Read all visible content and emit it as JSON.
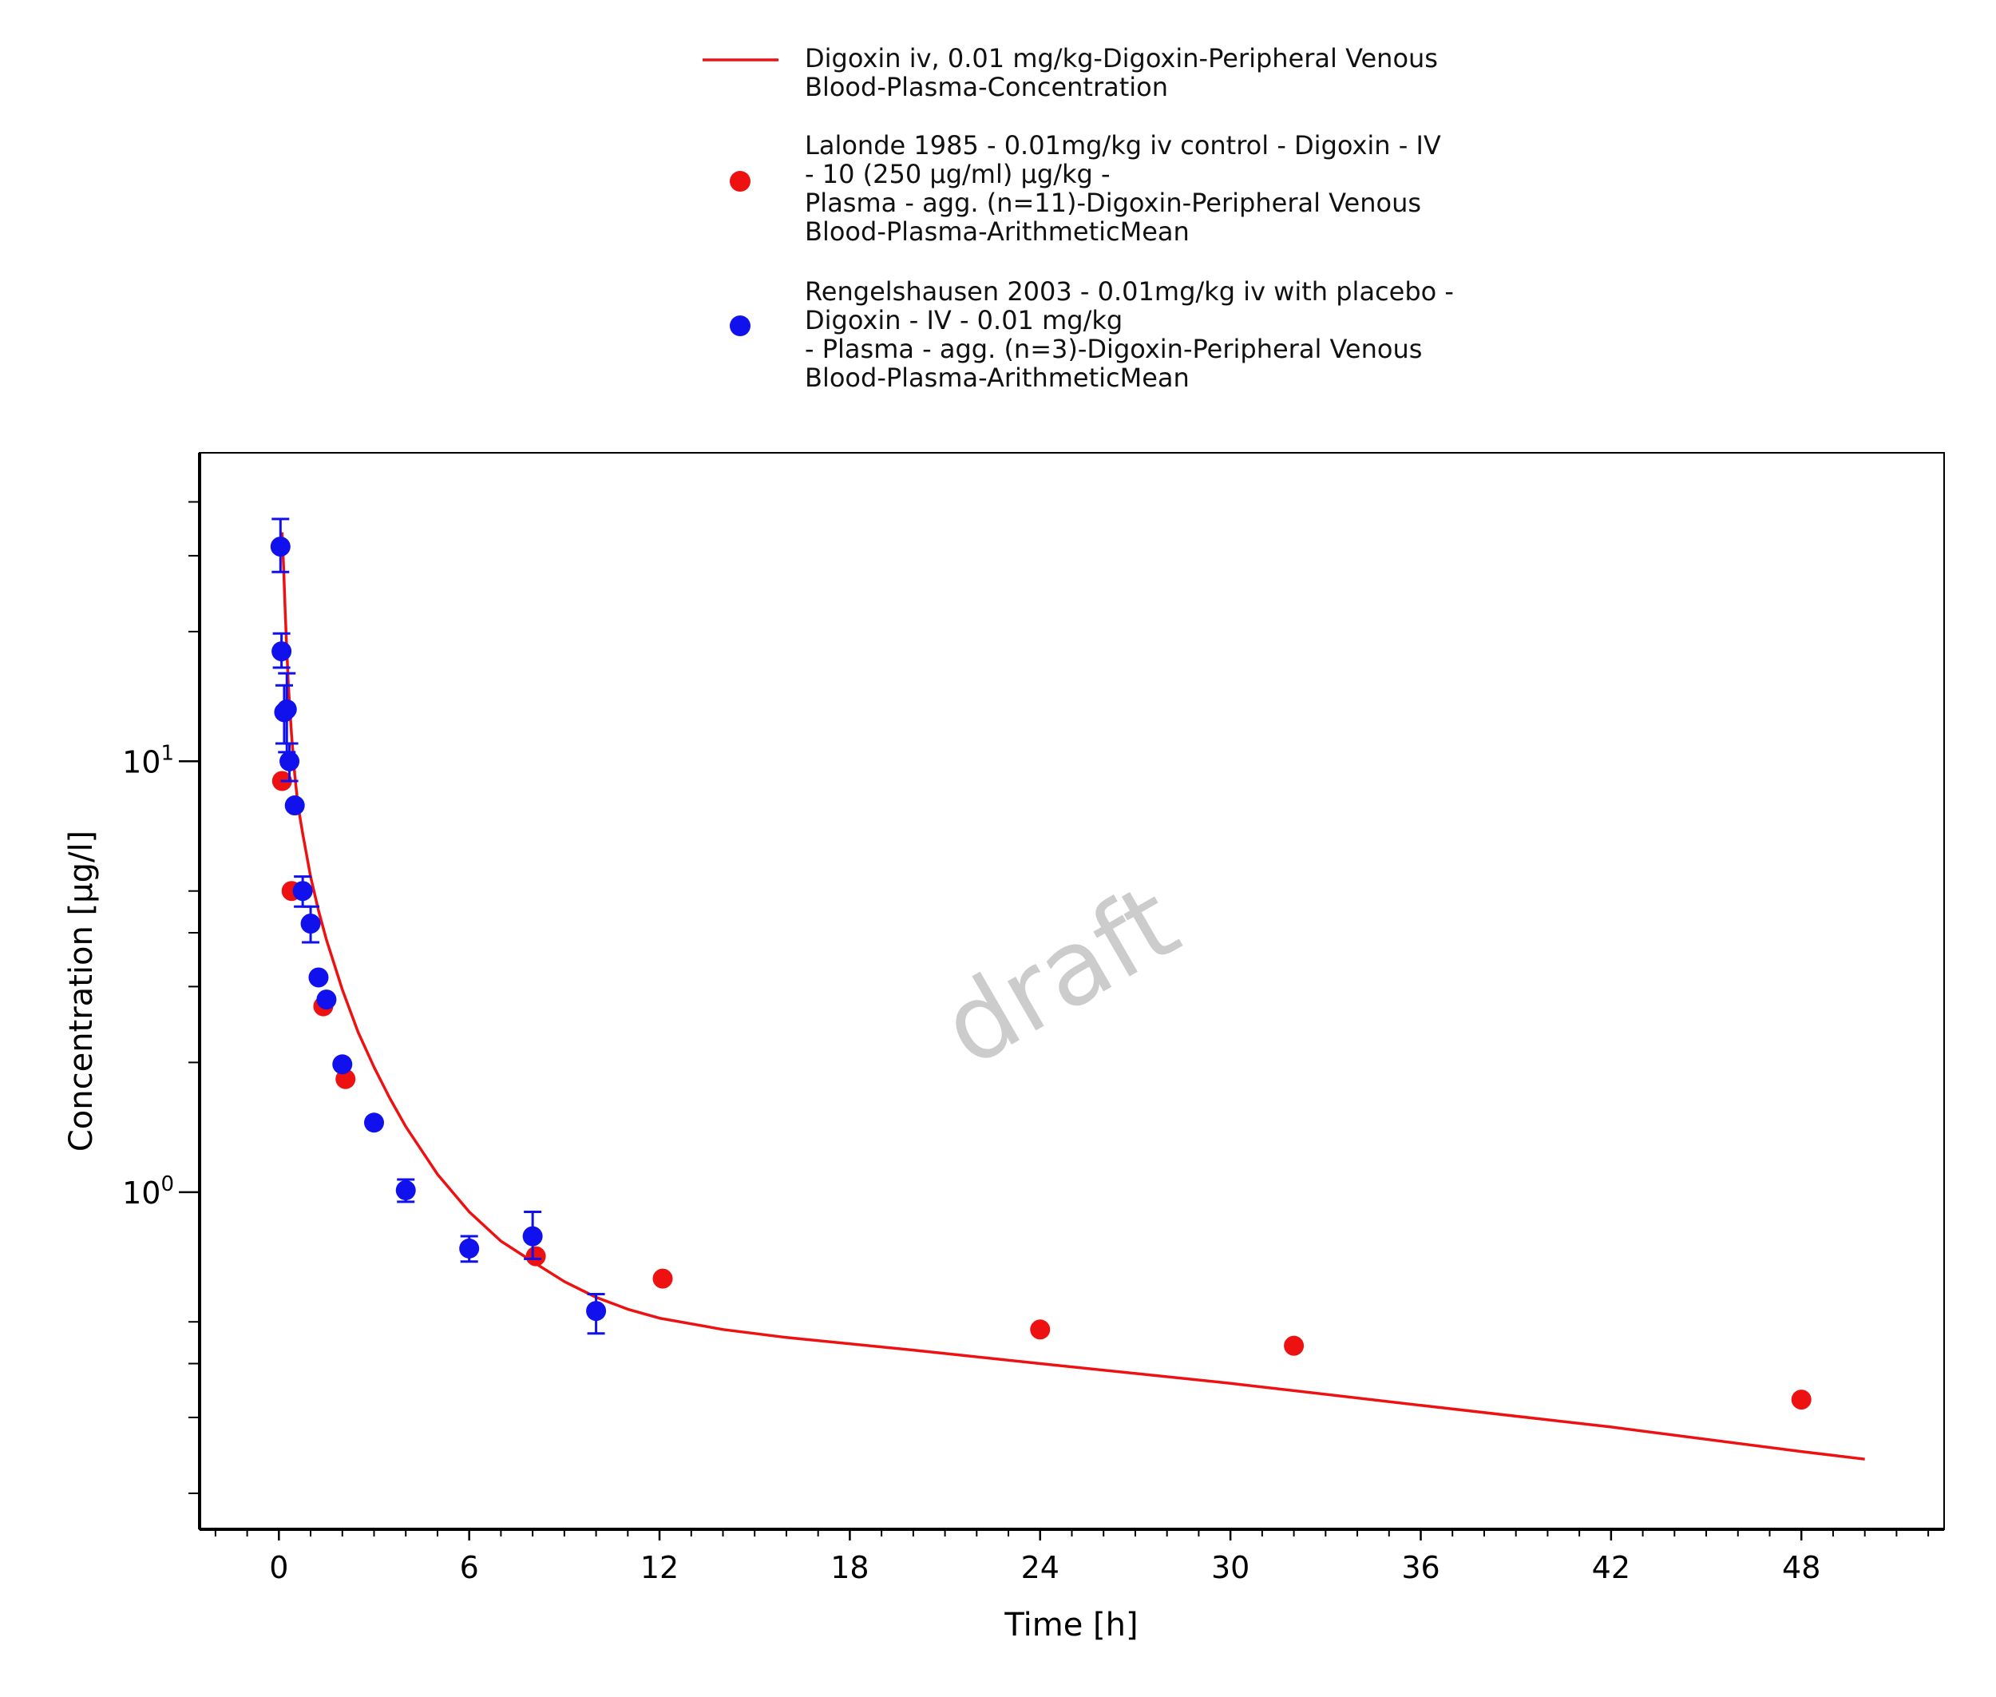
{
  "chart_data": {
    "type": "line+scatter",
    "x_axis": {
      "label": "Time [h]",
      "range": [
        -2.5,
        52.5
      ],
      "ticks": [
        0,
        6,
        12,
        18,
        24,
        30,
        36,
        42,
        48
      ],
      "tick_labels": [
        "0",
        "6",
        "12",
        "18",
        "24",
        "30",
        "36",
        "42",
        "48"
      ]
    },
    "y_axis": {
      "label": "Concentration [µg/l]",
      "scale": "log",
      "range": [
        0.165,
        52
      ],
      "major_ticks": [
        1,
        10
      ],
      "tick_labels": [
        {
          "base": "10",
          "exponent": "0",
          "value": 1
        },
        {
          "base": "10",
          "exponent": "1",
          "value": 10
        }
      ],
      "minor_ticks": [
        0.2,
        0.3,
        0.4,
        0.5,
        2,
        3,
        4,
        5,
        20,
        30,
        40
      ]
    },
    "legend_position": "top-center",
    "watermark": "draft",
    "series": [
      {
        "name": "Digoxin iv, 0.01 mg/kg-Digoxin-Peripheral Venous Blood-Plasma-Concentration",
        "legend_lines": [
          "Digoxin iv, 0.01 mg/kg-Digoxin-Peripheral Venous",
          "Blood-Plasma-Concentration"
        ],
        "kind": "line",
        "color": "#ee1111",
        "x": [
          0.1,
          0.15,
          0.2,
          0.25,
          0.3,
          0.4,
          0.5,
          0.6,
          0.75,
          1.0,
          1.25,
          1.5,
          2,
          2.5,
          3,
          3.5,
          4,
          5,
          6,
          7,
          8,
          9,
          10,
          11,
          12,
          14,
          16,
          20,
          24,
          30,
          36,
          42,
          48,
          50
        ],
        "y": [
          34,
          28,
          22,
          18,
          15,
          11.5,
          9.3,
          7.9,
          6.8,
          5.4,
          4.5,
          3.85,
          2.95,
          2.35,
          1.95,
          1.65,
          1.42,
          1.1,
          0.9,
          0.77,
          0.69,
          0.62,
          0.57,
          0.535,
          0.51,
          0.48,
          0.46,
          0.43,
          0.4,
          0.36,
          0.32,
          0.285,
          0.25,
          0.24
        ]
      },
      {
        "name": "Lalonde 1985 - 0.01mg/kg iv control - Digoxin - IV - 10 (250 µg/ml) µg/kg - Plasma - agg. (n=11)-Digoxin-Peripheral Venous Blood-Plasma-ArithmeticMean",
        "legend_lines": [
          "Lalonde 1985 - 0.01mg/kg iv control - Digoxin - IV",
          "- 10 (250 µg/ml) µg/kg -",
          "Plasma - agg. (n=11)-Digoxin-Peripheral Venous",
          "Blood-Plasma-ArithmeticMean"
        ],
        "kind": "scatter",
        "color": "#ee1111",
        "x": [
          0.1,
          0.4,
          1.4,
          2.1,
          8.1,
          12.1,
          24.0,
          32.0,
          48.0
        ],
        "y": [
          9.0,
          5.0,
          2.7,
          1.83,
          0.71,
          0.63,
          0.48,
          0.44,
          0.33
        ]
      },
      {
        "name": "Rengelshausen 2003 - 0.01mg/kg iv with placebo - Digoxin - IV - 0.01 mg/kg - Plasma - agg. (n=3)-Digoxin-Peripheral Venous Blood-Plasma-ArithmeticMean",
        "legend_lines": [
          "Rengelshausen 2003 - 0.01mg/kg iv with placebo -",
          "Digoxin - IV - 0.01 mg/kg",
          "- Plasma - agg. (n=3)-Digoxin-Peripheral Venous",
          "Blood-Plasma-ArithmeticMean"
        ],
        "kind": "scatter",
        "color": "#1111ee",
        "x": [
          0.05,
          0.083,
          0.167,
          0.25,
          0.333,
          0.5,
          0.75,
          1.0,
          1.25,
          1.5,
          2.0,
          3.0,
          4.0,
          6.0,
          8.0,
          10.0
        ],
        "y": [
          31.5,
          18.0,
          13.0,
          13.2,
          10.0,
          7.9,
          5.0,
          4.2,
          3.15,
          2.8,
          1.98,
          1.45,
          1.01,
          0.74,
          0.79,
          0.53
        ],
        "error_low": [
          27.5,
          16.5,
          11.0,
          10.5,
          9.0,
          null,
          4.6,
          3.8,
          null,
          null,
          null,
          null,
          0.95,
          0.69,
          0.7,
          0.47
        ],
        "error_high": [
          36.5,
          19.8,
          15.0,
          16.0,
          11.0,
          null,
          5.4,
          4.6,
          null,
          null,
          null,
          null,
          1.07,
          0.79,
          0.9,
          0.58
        ]
      }
    ]
  }
}
